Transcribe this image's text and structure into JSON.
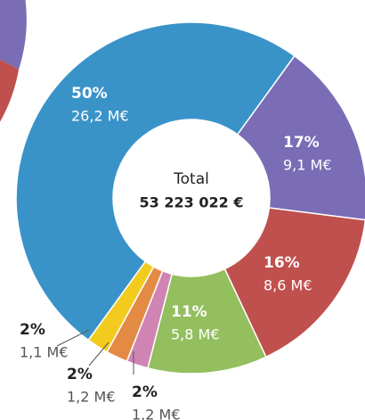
{
  "chart_data": {
    "type": "donut",
    "categories": [
      null,
      null,
      null,
      null,
      null,
      null,
      null
    ],
    "values": [
      17,
      16,
      11,
      2,
      2,
      2,
      50
    ],
    "value_labels": [
      "17%",
      "16%",
      "11%",
      "2%",
      "2%",
      "2%",
      "50%"
    ],
    "amounts": [
      9.1,
      8.6,
      5.8,
      1.2,
      1.2,
      1.1,
      26.2
    ],
    "amount_labels": [
      "9,1 M€",
      "8,6 M€",
      "5,8 M€",
      "1,2 M€",
      "1,2 M€",
      "1,1 M€",
      "26,2 M€"
    ],
    "colors": [
      "#7a6db5",
      "#c0504d",
      "#93bf5f",
      "#d084b4",
      "#e38a45",
      "#f2cb1e",
      "#3a93c8"
    ],
    "total": {
      "label": "Total",
      "value": 53223022,
      "value_label": "53 223 022 €"
    }
  }
}
